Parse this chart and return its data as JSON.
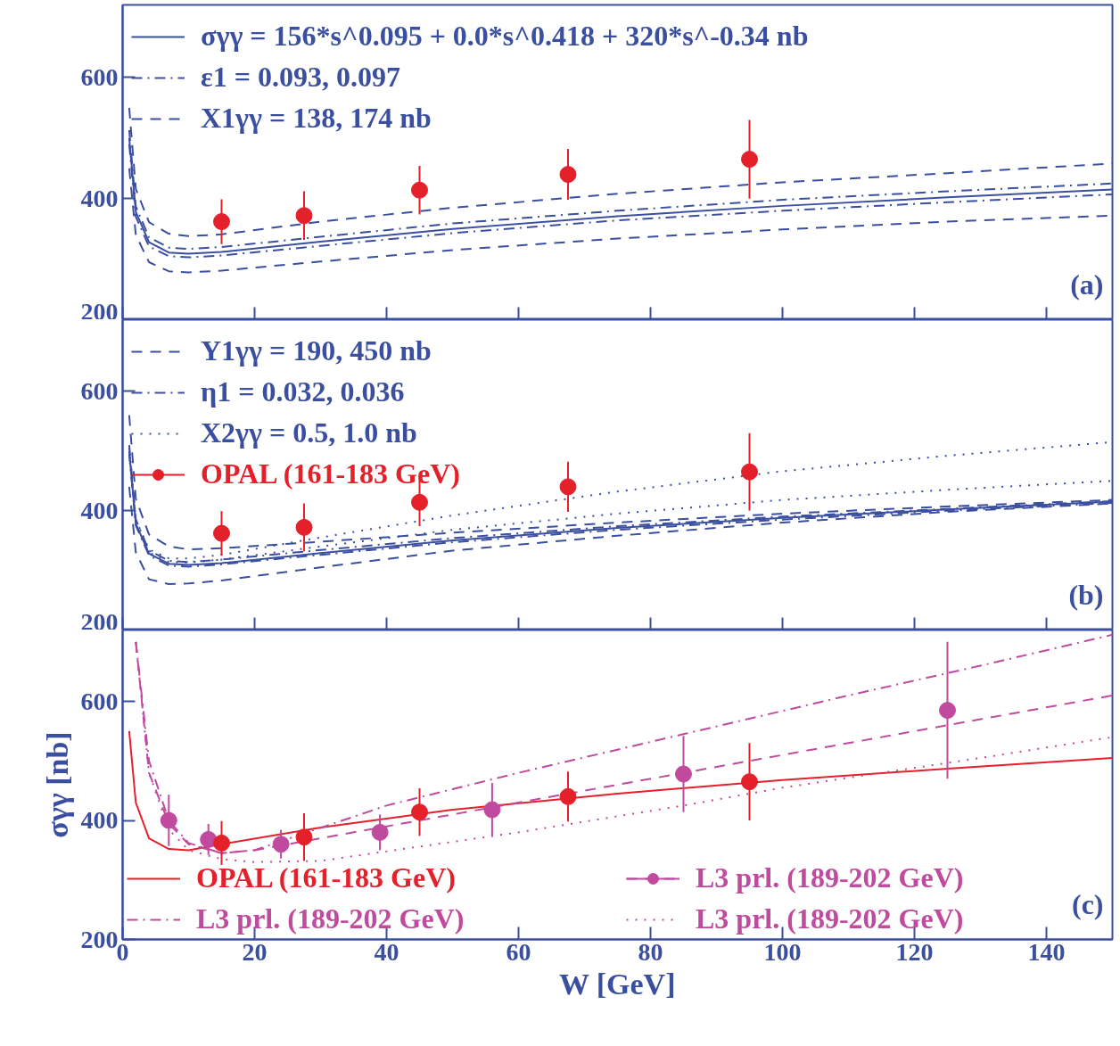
{
  "chart_data": [
    {
      "type": "line",
      "xlim": [
        0,
        150
      ],
      "ylim": [
        200,
        720
      ],
      "xticks": [
        0,
        20,
        40,
        60,
        80,
        100,
        120,
        140
      ],
      "yticks": [
        200,
        400,
        600
      ],
      "tick_labels": "y",
      "grid": false,
      "legend": "top left",
      "annotations": [
        "(a)"
      ],
      "series": [
        {
          "name": "σγγ = 156*s^0.095 + 0.0*s^0.418 + 320*s^-0.34 nb",
          "color": "#3b4fa0",
          "line_style": "solid",
          "x": [
            1,
            2,
            4,
            7,
            10,
            15,
            30,
            50,
            75,
            100,
            125,
            150
          ],
          "values": [
            500,
            378,
            328,
            311,
            309,
            312,
            329,
            350,
            371,
            388,
            402,
            415
          ]
        },
        {
          "name": "ε1 = 0.093, 0.097",
          "color": "#3b4fa0",
          "line_style": "dashdot",
          "x": [
            1,
            2,
            4,
            7,
            10,
            15,
            30,
            50,
            75,
            100,
            125,
            150
          ],
          "values": [
            513,
            387,
            336,
            319,
            317,
            320,
            337,
            359,
            380,
            398,
            412,
            425
          ]
        },
        {
          "color": "#3b4fa0",
          "line_style": "dashdot",
          "x": [
            1,
            2,
            4,
            7,
            10,
            15,
            30,
            50,
            75,
            100,
            125,
            150
          ],
          "values": [
            490,
            370,
            321,
            305,
            303,
            306,
            322,
            343,
            364,
            380,
            394,
            407
          ]
        },
        {
          "name": "X1γγ = 138, 174 nb",
          "color": "#3b4fa0",
          "line_style": "dashed",
          "x": [
            1,
            2,
            4,
            7,
            10,
            15,
            30,
            50,
            75,
            100,
            125,
            150
          ],
          "values": [
            550,
            416,
            361,
            342,
            338,
            341,
            362,
            385,
            408,
            427,
            442,
            458
          ]
        },
        {
          "color": "#3b4fa0",
          "line_style": "dashed",
          "x": [
            1,
            2,
            4,
            7,
            10,
            15,
            30,
            50,
            75,
            100,
            125,
            150
          ],
          "values": [
            450,
            340,
            295,
            280,
            278,
            281,
            296,
            315,
            334,
            349,
            362,
            372
          ]
        },
        {
          "type": "scatter",
          "color": "#e4202a",
          "marker": "circle",
          "x": [
            15,
            27.5,
            45,
            67.5,
            95
          ],
          "values": [
            362,
            372,
            414,
            440,
            465
          ],
          "errors": [
            37,
            40,
            40,
            42,
            65
          ]
        }
      ]
    },
    {
      "type": "line",
      "xlim": [
        0,
        150
      ],
      "ylim": [
        200,
        720
      ],
      "xticks": [
        0,
        20,
        40,
        60,
        80,
        100,
        120,
        140
      ],
      "yticks": [
        200,
        400,
        600
      ],
      "tick_labels": "y",
      "grid": false,
      "legend": "top left",
      "annotations": [
        "(b)"
      ],
      "series": [
        {
          "color": "#3b4fa0",
          "line_style": "solid",
          "x": [
            1,
            2,
            4,
            7,
            10,
            15,
            30,
            50,
            75,
            100,
            125,
            150
          ],
          "values": [
            500,
            378,
            328,
            311,
            309,
            312,
            329,
            350,
            371,
            388,
            402,
            415
          ]
        },
        {
          "name": "Y1γγ = 190, 450 nb",
          "color": "#3b4fa0",
          "line_style": "dashed",
          "x": [
            1,
            2,
            4,
            7,
            10,
            15,
            30,
            50,
            75,
            100,
            125,
            150
          ],
          "values": [
            560,
            420,
            360,
            340,
            335,
            337,
            348,
            363,
            380,
            395,
            407,
            418
          ]
        },
        {
          "color": "#3b4fa0",
          "line_style": "dashed",
          "x": [
            1,
            2,
            4,
            7,
            10,
            15,
            30,
            50,
            75,
            100,
            125,
            150
          ],
          "values": [
            440,
            330,
            285,
            277,
            278,
            283,
            305,
            333,
            358,
            380,
            398,
            412
          ]
        },
        {
          "name": "η1 = 0.032, 0.036",
          "color": "#3b4fa0",
          "line_style": "dashdot",
          "x": [
            1,
            2,
            4,
            7,
            10,
            15,
            30,
            50,
            75,
            100,
            125,
            150
          ],
          "values": [
            510,
            385,
            333,
            316,
            314,
            318,
            334,
            354,
            374,
            390,
            403,
            416
          ]
        },
        {
          "color": "#3b4fa0",
          "line_style": "dashdot",
          "x": [
            1,
            2,
            4,
            7,
            10,
            15,
            30,
            50,
            75,
            100,
            125,
            150
          ],
          "values": [
            495,
            375,
            325,
            308,
            306,
            310,
            326,
            347,
            368,
            385,
            400,
            413
          ]
        },
        {
          "name": "X2γγ = 0.5, 1.0 nb",
          "color": "#3b4fa0",
          "line_style": "dotted",
          "x": [
            1,
            2,
            4,
            7,
            10,
            15,
            30,
            50,
            75,
            100,
            125,
            150
          ],
          "values": [
            505,
            385,
            335,
            320,
            320,
            326,
            355,
            392,
            432,
            466,
            492,
            515
          ]
        },
        {
          "color": "#3b4fa0",
          "line_style": "dotted",
          "x": [
            1,
            2,
            4,
            7,
            10,
            15,
            30,
            50,
            75,
            100,
            125,
            150
          ],
          "values": [
            500,
            380,
            330,
            314,
            313,
            318,
            340,
            368,
            395,
            418,
            435,
            450
          ]
        },
        {
          "type": "scatter",
          "name": "OPAL (161-183 GeV)",
          "color": "#e4202a",
          "marker": "circle",
          "x": [
            15,
            27.5,
            45,
            67.5,
            95
          ],
          "values": [
            362,
            372,
            414,
            440,
            465
          ],
          "errors": [
            37,
            40,
            40,
            42,
            65
          ]
        }
      ]
    },
    {
      "type": "line",
      "xlim": [
        0,
        150
      ],
      "ylim": [
        200,
        720
      ],
      "xticks": [
        0,
        20,
        40,
        60,
        80,
        100,
        120,
        140
      ],
      "yticks": [
        200,
        400,
        600
      ],
      "grid": false,
      "legend": "bottom",
      "xlabel": "W [GeV]",
      "ylabel": "σγγ [nb]",
      "annotations": [
        "(c)"
      ],
      "series": [
        {
          "name": "OPAL (161-183 GeV)",
          "color": "#e4202a",
          "line_style": "solid",
          "x": [
            1,
            2,
            4,
            7,
            10,
            15,
            30,
            50,
            75,
            100,
            125,
            150
          ],
          "values": [
            550,
            430,
            370,
            352,
            350,
            360,
            388,
            418,
            445,
            468,
            487,
            505
          ]
        },
        {
          "type": "scatter",
          "name": "L3 prl. (189-202 GeV)",
          "color": "#c04a9e",
          "marker": "circle",
          "x": [
            7,
            13,
            24,
            39,
            56,
            85,
            125
          ],
          "values": [
            400,
            368,
            360,
            380,
            418,
            478,
            585
          ],
          "errors": [
            43,
            26,
            24,
            30,
            45,
            64,
            115
          ]
        },
        {
          "color": "#c04a9e",
          "line_style": "dashed",
          "x": [
            2,
            4,
            7,
            10,
            15,
            20,
            40,
            60,
            85,
            110,
            130,
            150
          ],
          "values": [
            700,
            480,
            395,
            360,
            345,
            350,
            390,
            430,
            480,
            530,
            570,
            610
          ]
        },
        {
          "name": "L3 prl. (189-202 GeV)",
          "color": "#c04a9e",
          "line_style": "dashdot",
          "x": [
            2,
            4,
            7,
            10,
            15,
            20,
            40,
            60,
            85,
            110,
            130,
            150
          ],
          "values": [
            700,
            500,
            400,
            362,
            345,
            350,
            425,
            480,
            545,
            610,
            660,
            712
          ]
        },
        {
          "name": "L3 prl. (189-202 GeV)",
          "color": "#c04a9e",
          "line_style": "dotted",
          "x": [
            2,
            4,
            7,
            10,
            15,
            20,
            30,
            60,
            85,
            100,
            130,
            150
          ],
          "values": [
            700,
            480,
            385,
            350,
            335,
            330,
            332,
            380,
            425,
            455,
            505,
            540
          ]
        },
        {
          "type": "scatter",
          "color": "#e4202a",
          "marker": "circle",
          "x": [
            15,
            27.5,
            45,
            67.5,
            95
          ],
          "values": [
            362,
            372,
            414,
            440,
            465
          ],
          "errors": [
            37,
            40,
            40,
            42,
            65
          ]
        }
      ]
    }
  ]
}
